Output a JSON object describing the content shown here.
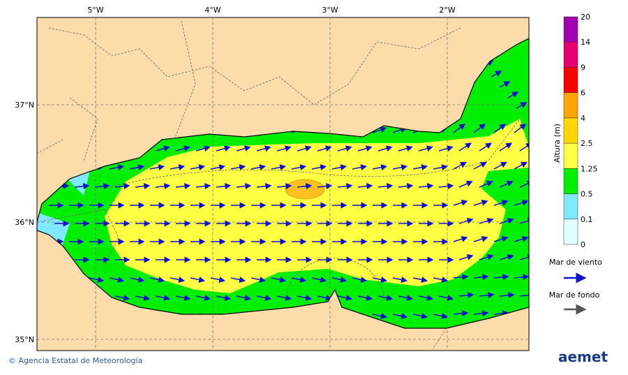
{
  "map": {
    "lon_labels": [
      "5°W",
      "4°W",
      "3°W",
      "2°W"
    ],
    "lat_labels": [
      "37°N",
      "36°N",
      "35°N"
    ]
  },
  "colorbar": {
    "title": "Altura (m)",
    "ticks": [
      "0",
      "0.1",
      "0.5",
      "1.25",
      "2.5",
      "4",
      "6",
      "9",
      "14",
      "20"
    ],
    "colors": [
      "#e0ffff",
      "#80e8ff",
      "#00ee00",
      "#ffff44",
      "#ffd700",
      "#ffa500",
      "#ff0000",
      "#e8006e",
      "#a000b0"
    ]
  },
  "legend": {
    "wind_sea": "Mar de viento",
    "swell": "Mar de fondo"
  },
  "footer": {
    "credit": "© Agencia Estatal de Meteorología",
    "logo": "aemet"
  }
}
